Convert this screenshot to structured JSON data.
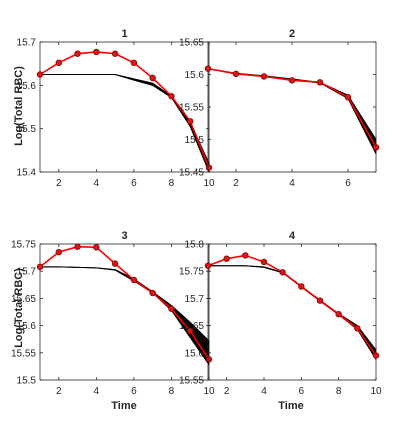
{
  "figure": {
    "ylabel": "Log(Total RBC)",
    "xlabel": "Time"
  },
  "chart_data": [
    {
      "type": "line",
      "title": "1",
      "xlim": [
        1,
        10
      ],
      "ylim": [
        15.4,
        15.7
      ],
      "xticks": [
        2,
        4,
        6,
        8,
        10
      ],
      "yticks": [
        15.4,
        15.5,
        15.6,
        15.7
      ],
      "ytick_labels": [
        "15.4",
        "15.5",
        "15.6",
        "15.7"
      ],
      "series": [
        {
          "role": "model",
          "color": "#000000",
          "x": [
            1,
            2,
            3,
            4,
            5,
            6,
            7,
            8,
            9,
            10
          ],
          "y": [
            15.625,
            15.625,
            15.625,
            15.625,
            15.625,
            15.615,
            15.605,
            15.575,
            15.515,
            15.42
          ]
        },
        {
          "role": "model",
          "color": "#000000",
          "x": [
            1,
            2,
            3,
            4,
            5,
            6,
            7,
            8,
            9,
            10
          ],
          "y": [
            15.625,
            15.625,
            15.625,
            15.625,
            15.625,
            15.612,
            15.6,
            15.572,
            15.505,
            15.4
          ]
        },
        {
          "role": "observed",
          "color": "#ff0000",
          "x": [
            1,
            2,
            3,
            4,
            5,
            6,
            7,
            8,
            9,
            10
          ],
          "y": [
            15.625,
            15.652,
            15.673,
            15.677,
            15.673,
            15.652,
            15.617,
            15.575,
            15.517,
            15.41
          ]
        }
      ]
    },
    {
      "type": "line",
      "title": "2",
      "xlim": [
        1,
        7
      ],
      "ylim": [
        15.45,
        15.65
      ],
      "xticks": [
        2,
        4,
        6
      ],
      "yticks": [
        15.45,
        15.5,
        15.55,
        15.6,
        15.65
      ],
      "ytick_labels": [
        "15.45",
        "15.5",
        "15.55",
        "15.6",
        "15.65"
      ],
      "series": [
        {
          "role": "model",
          "color": "#000000",
          "x": [
            1,
            2,
            3,
            4,
            5,
            6,
            7
          ],
          "y": [
            15.609,
            15.602,
            15.598,
            15.593,
            15.588,
            15.568,
            15.5
          ]
        },
        {
          "role": "model",
          "color": "#000000",
          "x": [
            1,
            2,
            3,
            4,
            5,
            6,
            7
          ],
          "y": [
            15.609,
            15.601,
            15.597,
            15.592,
            15.587,
            15.563,
            15.478
          ]
        },
        {
          "role": "observed",
          "color": "#ff0000",
          "x": [
            1,
            2,
            3,
            4,
            5,
            6,
            7
          ],
          "y": [
            15.609,
            15.601,
            15.597,
            15.591,
            15.588,
            15.565,
            15.488
          ]
        }
      ]
    },
    {
      "type": "line",
      "title": "3",
      "xlim": [
        1,
        10
      ],
      "ylim": [
        15.5,
        15.75
      ],
      "xticks": [
        2,
        4,
        6,
        8,
        10
      ],
      "yticks": [
        15.5,
        15.55,
        15.6,
        15.65,
        15.7,
        15.75
      ],
      "ytick_labels": [
        "15.5",
        "15.55",
        "15.6",
        "15.65",
        "15.7",
        "15.75"
      ],
      "series": [
        {
          "role": "model",
          "color": "#000000",
          "x": [
            1,
            2,
            3,
            4,
            5,
            6,
            7,
            8,
            9,
            10
          ],
          "y": [
            15.708,
            15.708,
            15.707,
            15.706,
            15.703,
            15.686,
            15.662,
            15.637,
            15.606,
            15.572
          ]
        },
        {
          "role": "model",
          "color": "#000000",
          "x": [
            1,
            2,
            3,
            4,
            5,
            6,
            7,
            8,
            9,
            10
          ],
          "y": [
            15.708,
            15.708,
            15.707,
            15.706,
            15.702,
            15.682,
            15.66,
            15.628,
            15.578,
            15.528
          ]
        },
        {
          "role": "observed",
          "color": "#ff0000",
          "x": [
            1,
            2,
            3,
            4,
            5,
            6,
            7,
            8,
            9,
            10
          ],
          "y": [
            15.708,
            15.735,
            15.745,
            15.744,
            15.714,
            15.684,
            15.66,
            15.631,
            15.59,
            15.538
          ]
        }
      ]
    },
    {
      "type": "line",
      "title": "4",
      "xlim": [
        1,
        10
      ],
      "ylim": [
        15.55,
        15.8
      ],
      "xticks": [
        2,
        4,
        6,
        8,
        10
      ],
      "yticks": [
        15.55,
        15.6,
        15.65,
        15.7,
        15.75,
        15.8
      ],
      "ytick_labels": [
        "15.55",
        "15.6",
        "15.65",
        "15.7",
        "15.75",
        "15.8"
      ],
      "series": [
        {
          "role": "model",
          "color": "#000000",
          "x": [
            1,
            2,
            3,
            4,
            5,
            6,
            7,
            8,
            9,
            10
          ],
          "y": [
            15.76,
            15.76,
            15.76,
            15.758,
            15.748,
            15.722,
            15.697,
            15.672,
            15.65,
            15.605
          ]
        },
        {
          "role": "model",
          "color": "#000000",
          "x": [
            1,
            2,
            3,
            4,
            5,
            6,
            7,
            8,
            9,
            10
          ],
          "y": [
            15.76,
            15.76,
            15.76,
            15.757,
            15.747,
            15.721,
            15.695,
            15.67,
            15.643,
            15.588
          ]
        },
        {
          "role": "observed",
          "color": "#ff0000",
          "x": [
            1,
            2,
            3,
            4,
            5,
            6,
            7,
            8,
            9,
            10
          ],
          "y": [
            15.76,
            15.773,
            15.779,
            15.767,
            15.748,
            15.722,
            15.696,
            15.671,
            15.645,
            15.595
          ]
        }
      ]
    }
  ]
}
